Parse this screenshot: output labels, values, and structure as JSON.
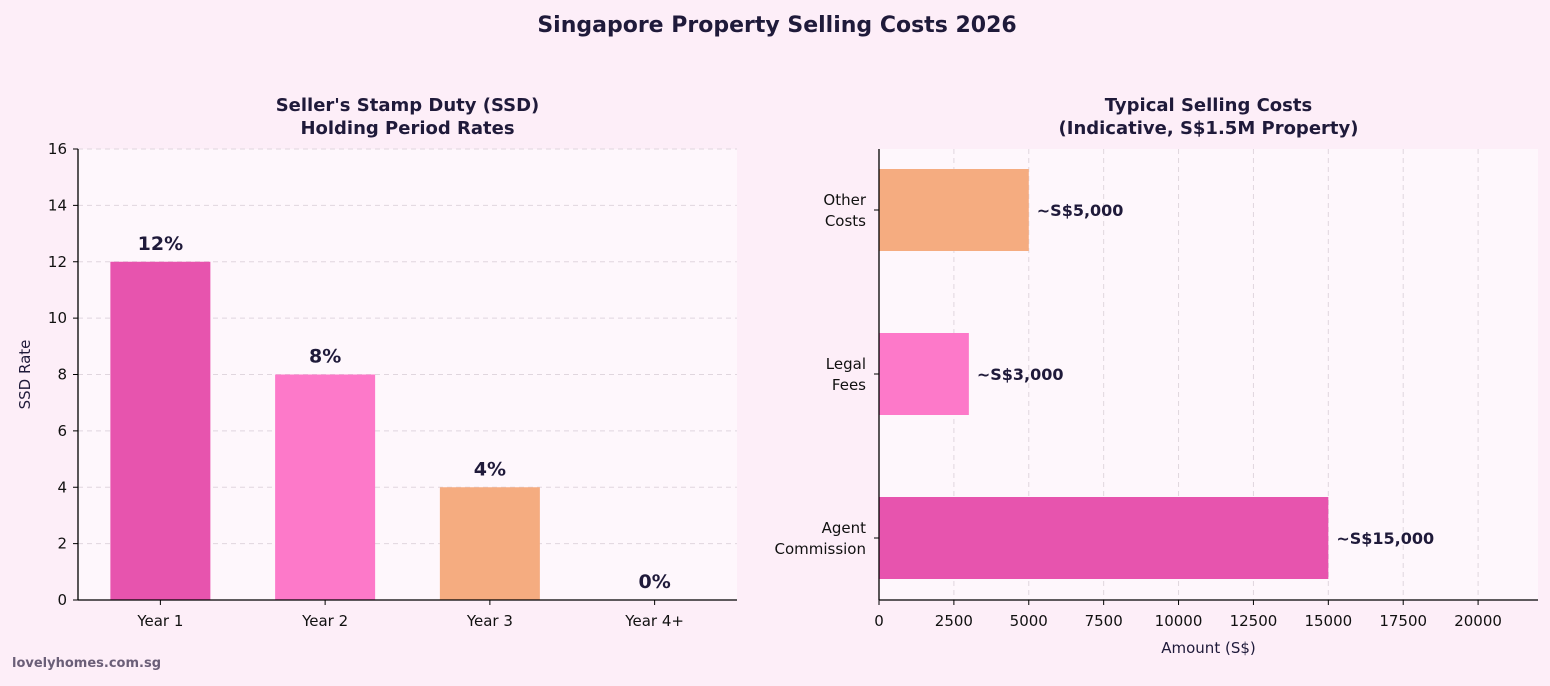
{
  "title": "Singapore Property Selling Costs 2026",
  "watermark": "lovelyhomes.com.sg",
  "colors": {
    "background": "#fdeef8",
    "plot_bg": "#fef7fc",
    "text": "#1f1a3a",
    "pink_dark": "#e754ae",
    "pink_light": "#fd79c9",
    "peach": "#f5ac80"
  },
  "chart_data": [
    {
      "type": "bar",
      "title": "Seller's Stamp Duty (SSD)\nHolding Period Rates",
      "title_lines": [
        "Seller's Stamp Duty (SSD)",
        "Holding Period Rates"
      ],
      "categories": [
        "Year 1",
        "Year 2",
        "Year 3",
        "Year 4+"
      ],
      "values": [
        12,
        8,
        4,
        0
      ],
      "data_labels": [
        "12%",
        "8%",
        "4%",
        "0%"
      ],
      "bar_colors": [
        "#e754ae",
        "#fd79c9",
        "#f5ac80",
        "#f5ac80"
      ],
      "xlabel": "",
      "ylabel": "SSD Rate",
      "ylim": [
        0,
        16
      ],
      "yticks": [
        0,
        2,
        4,
        6,
        8,
        10,
        12,
        14,
        16
      ],
      "grid": "y dashed"
    },
    {
      "type": "bar",
      "orientation": "horizontal",
      "title": "Typical Selling Costs\n(Indicative, S$1.5M Property)",
      "title_lines": [
        "Typical Selling Costs",
        "(Indicative, S$1.5M Property)"
      ],
      "categories": [
        [
          "Agent",
          "Commission"
        ],
        [
          "Legal",
          "Fees"
        ],
        [
          "Other",
          "Costs"
        ]
      ],
      "values": [
        15000,
        3000,
        5000
      ],
      "data_labels": [
        "~S$15,000",
        "~S$3,000",
        "~S$5,000"
      ],
      "bar_colors": [
        "#e754ae",
        "#fd79c9",
        "#f5ac80"
      ],
      "xlabel": "Amount (S$)",
      "ylabel": "",
      "xlim": [
        0,
        22000
      ],
      "xticks": [
        0,
        2500,
        5000,
        7500,
        10000,
        12500,
        15000,
        17500,
        20000
      ],
      "grid": "x dashed"
    }
  ]
}
